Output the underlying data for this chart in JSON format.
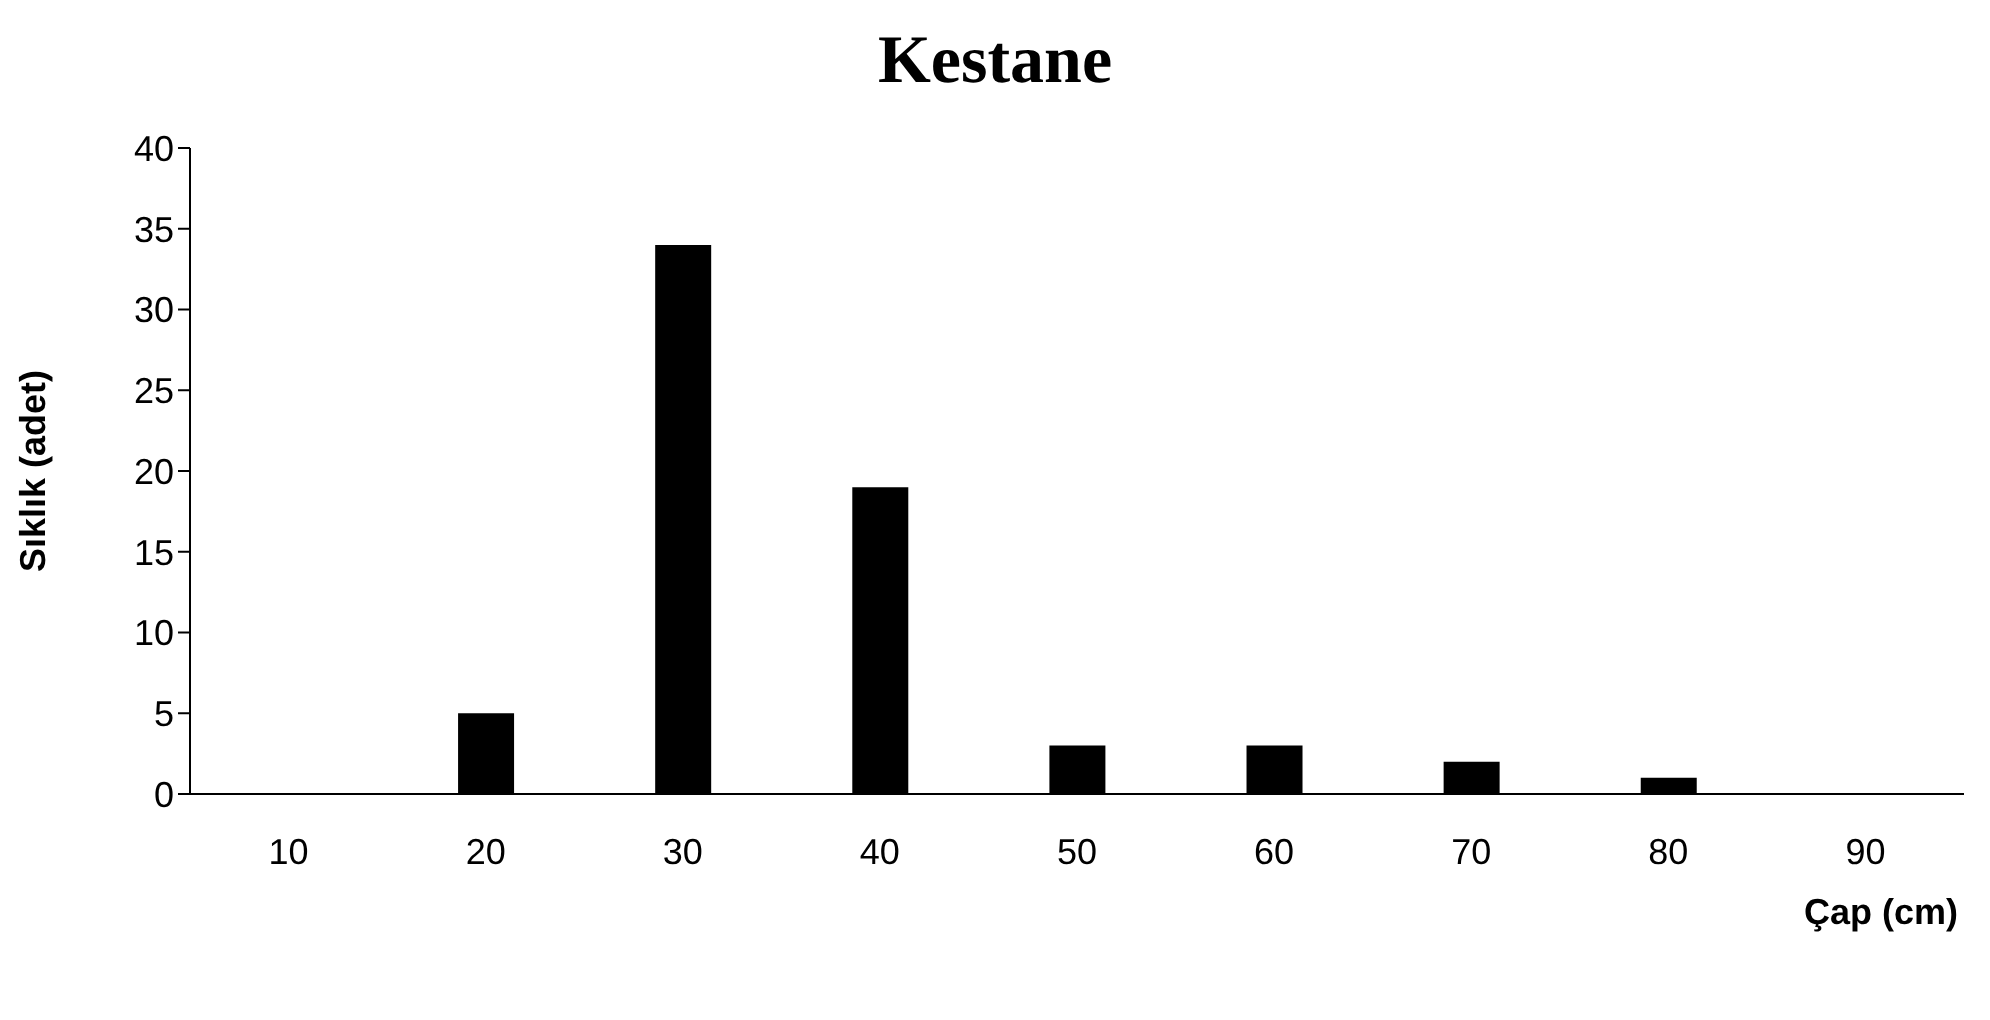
{
  "chart_data": {
    "type": "bar",
    "title": "Kestane",
    "xlabel": "Çap (cm)",
    "ylabel": "Sıklık (adet)",
    "categories": [
      "10",
      "20",
      "30",
      "40",
      "50",
      "60",
      "70",
      "80",
      "90"
    ],
    "values": [
      0,
      5,
      34,
      19,
      3,
      3,
      2,
      1,
      0
    ],
    "color": "#000000",
    "ylim": [
      0,
      40
    ],
    "yticks": [
      0,
      5,
      10,
      15,
      20,
      25,
      30,
      35,
      40
    ],
    "grid": false
  }
}
